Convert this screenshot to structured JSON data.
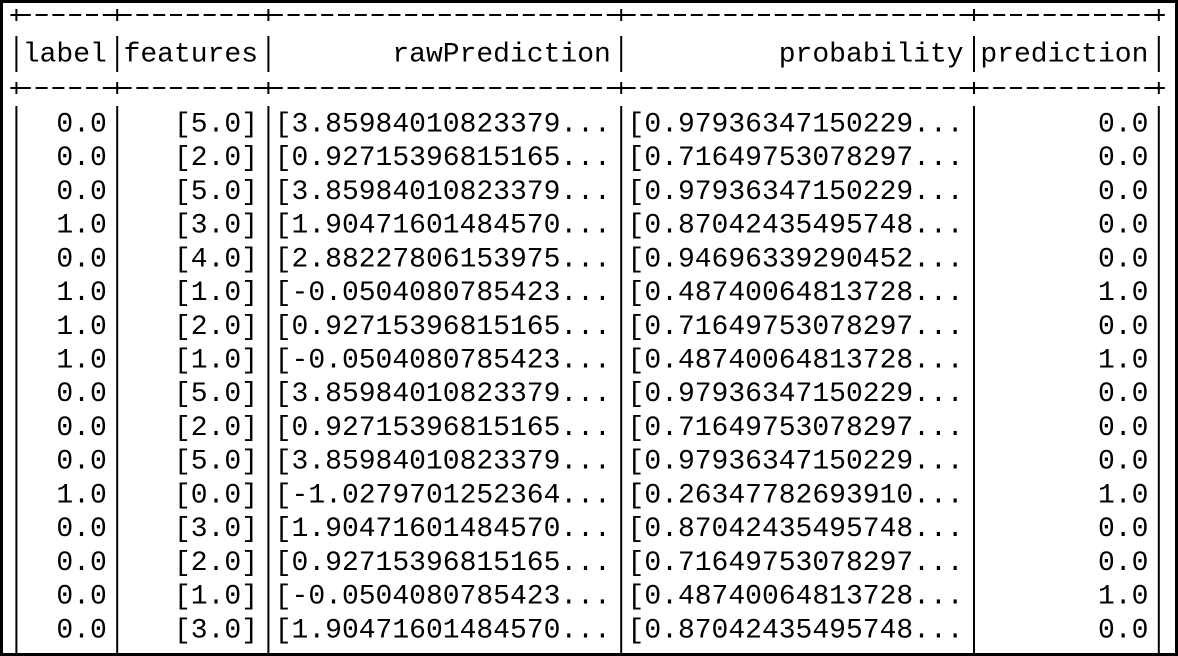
{
  "table": {
    "columns": [
      "label",
      "features",
      "rawPrediction",
      "probability",
      "prediction"
    ],
    "rows": [
      [
        "0.0",
        "[5.0]",
        "[3.85984010823379...",
        "[0.97936347150229...",
        "0.0"
      ],
      [
        "0.0",
        "[2.0]",
        "[0.92715396815165...",
        "[0.71649753078297...",
        "0.0"
      ],
      [
        "0.0",
        "[5.0]",
        "[3.85984010823379...",
        "[0.97936347150229...",
        "0.0"
      ],
      [
        "1.0",
        "[3.0]",
        "[1.90471601484570...",
        "[0.87042435495748...",
        "0.0"
      ],
      [
        "0.0",
        "[4.0]",
        "[2.88227806153975...",
        "[0.94696339290452...",
        "0.0"
      ],
      [
        "1.0",
        "[1.0]",
        "[-0.0504080785423...",
        "[0.48740064813728...",
        "1.0"
      ],
      [
        "1.0",
        "[2.0]",
        "[0.92715396815165...",
        "[0.71649753078297...",
        "0.0"
      ],
      [
        "1.0",
        "[1.0]",
        "[-0.0504080785423...",
        "[0.48740064813728...",
        "1.0"
      ],
      [
        "0.0",
        "[5.0]",
        "[3.85984010823379...",
        "[0.97936347150229...",
        "0.0"
      ],
      [
        "0.0",
        "[2.0]",
        "[0.92715396815165...",
        "[0.71649753078297...",
        "0.0"
      ],
      [
        "0.0",
        "[5.0]",
        "[3.85984010823379...",
        "[0.97936347150229...",
        "0.0"
      ],
      [
        "1.0",
        "[0.0]",
        "[-1.0279701252364...",
        "[0.26347782693910...",
        "1.0"
      ],
      [
        "0.0",
        "[3.0]",
        "[1.90471601484570...",
        "[0.87042435495748...",
        "0.0"
      ],
      [
        "0.0",
        "[2.0]",
        "[0.92715396815165...",
        "[0.71649753078297...",
        "0.0"
      ],
      [
        "0.0",
        "[1.0]",
        "[-0.0504080785423...",
        "[0.48740064813728...",
        "1.0"
      ],
      [
        "0.0",
        "[3.0]",
        "[1.90471601484570...",
        "[0.87042435495748...",
        "0.0"
      ]
    ]
  }
}
